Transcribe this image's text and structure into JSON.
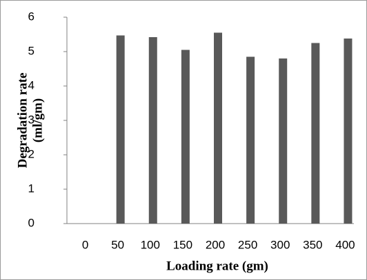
{
  "chart_data": {
    "type": "bar",
    "x_label": "Loading rate (gm)",
    "y_label": [
      "Degradation rate",
      "(ml/gm)"
    ],
    "categories": [
      "0",
      "50",
      "100",
      "150",
      "200",
      "250",
      "300",
      "350",
      "400"
    ],
    "values": [
      null,
      5.47,
      5.42,
      5.05,
      5.55,
      4.85,
      4.8,
      5.25,
      5.38
    ],
    "color": "#595959",
    "ylim": [
      0,
      6
    ],
    "yticks": [
      0,
      1,
      2,
      3,
      4,
      5,
      6
    ],
    "grid": false
  }
}
